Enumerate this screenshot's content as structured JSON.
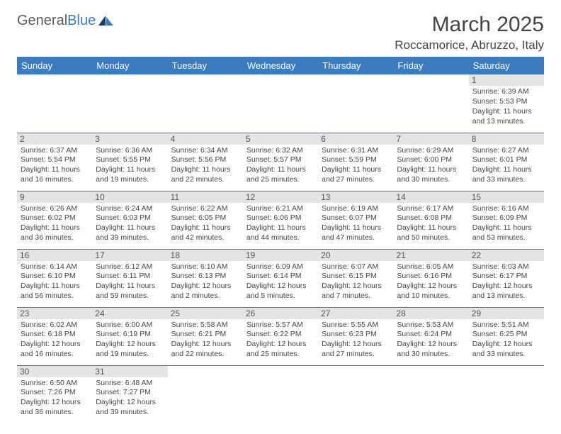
{
  "brand": {
    "name_part1": "General",
    "name_part2": "Blue"
  },
  "title": "March 2025",
  "location": "Roccamorice, Abruzzo, Italy",
  "colors": {
    "header_bg": "#3b7bbf",
    "header_text": "#ffffff",
    "daynum_bg": "#e4e4e4",
    "border": "#3b7bbf",
    "text": "#444444"
  },
  "typography": {
    "title_fontsize": 30,
    "location_fontsize": 17,
    "dayhead_fontsize": 13,
    "daynum_fontsize": 12,
    "info_fontsize": 10.5
  },
  "day_headers": [
    "Sunday",
    "Monday",
    "Tuesday",
    "Wednesday",
    "Thursday",
    "Friday",
    "Saturday"
  ],
  "weeks": [
    [
      null,
      null,
      null,
      null,
      null,
      null,
      {
        "n": "1",
        "sr": "Sunrise: 6:39 AM",
        "ss": "Sunset: 5:53 PM",
        "dl": "Daylight: 11 hours and 13 minutes."
      }
    ],
    [
      {
        "n": "2",
        "sr": "Sunrise: 6:37 AM",
        "ss": "Sunset: 5:54 PM",
        "dl": "Daylight: 11 hours and 16 minutes."
      },
      {
        "n": "3",
        "sr": "Sunrise: 6:36 AM",
        "ss": "Sunset: 5:55 PM",
        "dl": "Daylight: 11 hours and 19 minutes."
      },
      {
        "n": "4",
        "sr": "Sunrise: 6:34 AM",
        "ss": "Sunset: 5:56 PM",
        "dl": "Daylight: 11 hours and 22 minutes."
      },
      {
        "n": "5",
        "sr": "Sunrise: 6:32 AM",
        "ss": "Sunset: 5:57 PM",
        "dl": "Daylight: 11 hours and 25 minutes."
      },
      {
        "n": "6",
        "sr": "Sunrise: 6:31 AM",
        "ss": "Sunset: 5:59 PM",
        "dl": "Daylight: 11 hours and 27 minutes."
      },
      {
        "n": "7",
        "sr": "Sunrise: 6:29 AM",
        "ss": "Sunset: 6:00 PM",
        "dl": "Daylight: 11 hours and 30 minutes."
      },
      {
        "n": "8",
        "sr": "Sunrise: 6:27 AM",
        "ss": "Sunset: 6:01 PM",
        "dl": "Daylight: 11 hours and 33 minutes."
      }
    ],
    [
      {
        "n": "9",
        "sr": "Sunrise: 6:26 AM",
        "ss": "Sunset: 6:02 PM",
        "dl": "Daylight: 11 hours and 36 minutes."
      },
      {
        "n": "10",
        "sr": "Sunrise: 6:24 AM",
        "ss": "Sunset: 6:03 PM",
        "dl": "Daylight: 11 hours and 39 minutes."
      },
      {
        "n": "11",
        "sr": "Sunrise: 6:22 AM",
        "ss": "Sunset: 6:05 PM",
        "dl": "Daylight: 11 hours and 42 minutes."
      },
      {
        "n": "12",
        "sr": "Sunrise: 6:21 AM",
        "ss": "Sunset: 6:06 PM",
        "dl": "Daylight: 11 hours and 44 minutes."
      },
      {
        "n": "13",
        "sr": "Sunrise: 6:19 AM",
        "ss": "Sunset: 6:07 PM",
        "dl": "Daylight: 11 hours and 47 minutes."
      },
      {
        "n": "14",
        "sr": "Sunrise: 6:17 AM",
        "ss": "Sunset: 6:08 PM",
        "dl": "Daylight: 11 hours and 50 minutes."
      },
      {
        "n": "15",
        "sr": "Sunrise: 6:16 AM",
        "ss": "Sunset: 6:09 PM",
        "dl": "Daylight: 11 hours and 53 minutes."
      }
    ],
    [
      {
        "n": "16",
        "sr": "Sunrise: 6:14 AM",
        "ss": "Sunset: 6:10 PM",
        "dl": "Daylight: 11 hours and 56 minutes."
      },
      {
        "n": "17",
        "sr": "Sunrise: 6:12 AM",
        "ss": "Sunset: 6:11 PM",
        "dl": "Daylight: 11 hours and 59 minutes."
      },
      {
        "n": "18",
        "sr": "Sunrise: 6:10 AM",
        "ss": "Sunset: 6:13 PM",
        "dl": "Daylight: 12 hours and 2 minutes."
      },
      {
        "n": "19",
        "sr": "Sunrise: 6:09 AM",
        "ss": "Sunset: 6:14 PM",
        "dl": "Daylight: 12 hours and 5 minutes."
      },
      {
        "n": "20",
        "sr": "Sunrise: 6:07 AM",
        "ss": "Sunset: 6:15 PM",
        "dl": "Daylight: 12 hours and 7 minutes."
      },
      {
        "n": "21",
        "sr": "Sunrise: 6:05 AM",
        "ss": "Sunset: 6:16 PM",
        "dl": "Daylight: 12 hours and 10 minutes."
      },
      {
        "n": "22",
        "sr": "Sunrise: 6:03 AM",
        "ss": "Sunset: 6:17 PM",
        "dl": "Daylight: 12 hours and 13 minutes."
      }
    ],
    [
      {
        "n": "23",
        "sr": "Sunrise: 6:02 AM",
        "ss": "Sunset: 6:18 PM",
        "dl": "Daylight: 12 hours and 16 minutes."
      },
      {
        "n": "24",
        "sr": "Sunrise: 6:00 AM",
        "ss": "Sunset: 6:19 PM",
        "dl": "Daylight: 12 hours and 19 minutes."
      },
      {
        "n": "25",
        "sr": "Sunrise: 5:58 AM",
        "ss": "Sunset: 6:21 PM",
        "dl": "Daylight: 12 hours and 22 minutes."
      },
      {
        "n": "26",
        "sr": "Sunrise: 5:57 AM",
        "ss": "Sunset: 6:22 PM",
        "dl": "Daylight: 12 hours and 25 minutes."
      },
      {
        "n": "27",
        "sr": "Sunrise: 5:55 AM",
        "ss": "Sunset: 6:23 PM",
        "dl": "Daylight: 12 hours and 27 minutes."
      },
      {
        "n": "28",
        "sr": "Sunrise: 5:53 AM",
        "ss": "Sunset: 6:24 PM",
        "dl": "Daylight: 12 hours and 30 minutes."
      },
      {
        "n": "29",
        "sr": "Sunrise: 5:51 AM",
        "ss": "Sunset: 6:25 PM",
        "dl": "Daylight: 12 hours and 33 minutes."
      }
    ],
    [
      {
        "n": "30",
        "sr": "Sunrise: 6:50 AM",
        "ss": "Sunset: 7:26 PM",
        "dl": "Daylight: 12 hours and 36 minutes."
      },
      {
        "n": "31",
        "sr": "Sunrise: 6:48 AM",
        "ss": "Sunset: 7:27 PM",
        "dl": "Daylight: 12 hours and 39 minutes."
      },
      null,
      null,
      null,
      null,
      null
    ]
  ]
}
